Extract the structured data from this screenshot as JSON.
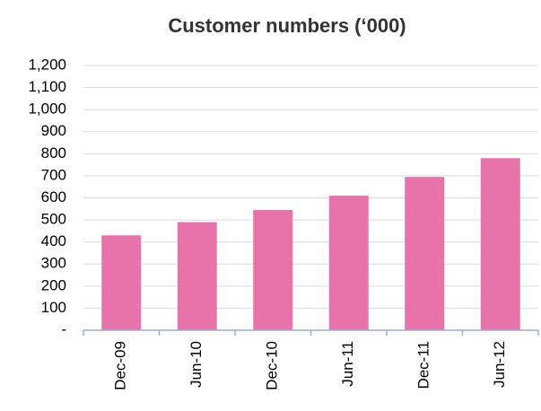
{
  "chart_data": {
    "type": "bar",
    "title": "Customer numbers (‘000)",
    "categories": [
      "Dec-09",
      "Jun-10",
      "Dec-10",
      "Jun-11",
      "Dec-11",
      "Jun-12"
    ],
    "values": [
      430,
      490,
      545,
      610,
      695,
      780
    ],
    "color": "#e872aa",
    "ylim": [
      0,
      1200
    ],
    "yticks": [
      {
        "value": 0,
        "label": "-"
      },
      100,
      200,
      300,
      400,
      500,
      600,
      700,
      800,
      900,
      {
        "value": 1000,
        "label": "1,000"
      },
      {
        "value": 1100,
        "label": "1,100"
      },
      {
        "value": 1200,
        "label": "1,200"
      }
    ],
    "grid": true
  }
}
